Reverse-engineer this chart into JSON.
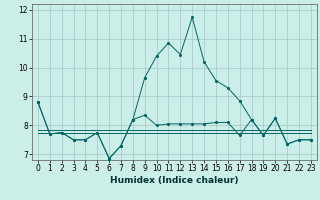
{
  "title": "",
  "xlabel": "Humidex (Indice chaleur)",
  "bg_color": "#cceee8",
  "grid_color": "#aacccc",
  "line_color": "#006666",
  "xlim": [
    -0.5,
    23.5
  ],
  "ylim": [
    6.8,
    12.2
  ],
  "yticks": [
    7,
    8,
    9,
    10,
    11,
    12
  ],
  "xticks": [
    0,
    1,
    2,
    3,
    4,
    5,
    6,
    7,
    8,
    9,
    10,
    11,
    12,
    13,
    14,
    15,
    16,
    17,
    18,
    19,
    20,
    21,
    22,
    23
  ],
  "series_main": [
    8.8,
    7.7,
    7.75,
    7.5,
    7.5,
    7.75,
    6.85,
    7.3,
    8.2,
    9.65,
    10.4,
    10.85,
    10.45,
    11.75,
    10.2,
    9.55,
    9.3,
    8.85,
    8.2,
    7.65,
    8.25,
    7.35,
    7.5,
    7.5
  ],
  "series_low": [
    8.8,
    7.7,
    7.75,
    7.5,
    7.5,
    7.75,
    6.85,
    7.3,
    8.2,
    8.35,
    8.0,
    8.05,
    8.05,
    8.05,
    8.05,
    8.1,
    8.1,
    7.65,
    8.2,
    7.65,
    8.25,
    7.35,
    7.5,
    7.5
  ],
  "series_flat1": [
    7.85,
    7.85,
    7.85,
    7.85,
    7.85,
    7.85,
    7.85,
    7.85,
    7.85,
    7.85,
    7.85,
    7.85,
    7.85,
    7.85,
    7.85,
    7.85,
    7.85,
    7.85,
    7.85,
    7.85,
    7.85,
    7.85,
    7.85,
    7.85
  ],
  "series_flat2": [
    7.75,
    7.75,
    7.75,
    7.75,
    7.75,
    7.75,
    7.75,
    7.75,
    7.75,
    7.75,
    7.75,
    7.75,
    7.75,
    7.75,
    7.75,
    7.75,
    7.75,
    7.75,
    7.75,
    7.75,
    7.75,
    7.75,
    7.75,
    7.75
  ]
}
